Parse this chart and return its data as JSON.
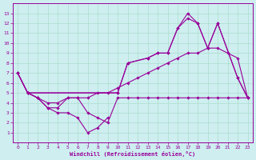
{
  "xlabel": "Windchill (Refroidissement éolien,°C)",
  "xlim": [
    -0.5,
    23.5
  ],
  "ylim": [
    0,
    14
  ],
  "xticks": [
    0,
    1,
    2,
    3,
    4,
    5,
    6,
    7,
    8,
    9,
    10,
    11,
    12,
    13,
    14,
    15,
    16,
    17,
    18,
    19,
    20,
    21,
    22,
    23
  ],
  "yticks": [
    1,
    2,
    3,
    4,
    5,
    6,
    7,
    8,
    9,
    10,
    11,
    12,
    13
  ],
  "bg_color": "#ceeef0",
  "line_color": "#990099",
  "grid_color": "#aaddcc",
  "lines": [
    {
      "x": [
        0,
        1,
        10,
        11,
        13,
        14,
        15,
        16,
        17,
        18,
        19,
        20,
        22,
        23
      ],
      "y": [
        7,
        5,
        5,
        8,
        8.5,
        9,
        9,
        11.5,
        13,
        12,
        9.5,
        12,
        6.5,
        4.5
      ]
    },
    {
      "x": [
        0,
        1,
        10,
        11,
        13,
        14,
        15,
        16,
        17,
        18,
        19,
        20,
        22,
        23
      ],
      "y": [
        7,
        5,
        5,
        8,
        8.5,
        9,
        9,
        11.5,
        12.5,
        12,
        9.5,
        12,
        6.5,
        4.5
      ]
    },
    {
      "x": [
        0,
        1,
        2,
        3,
        4,
        5,
        6,
        7,
        8,
        9,
        10,
        11,
        12,
        13,
        14,
        15,
        16,
        17,
        18,
        19,
        20,
        21,
        22,
        23
      ],
      "y": [
        7,
        5,
        4.5,
        4,
        4,
        4.5,
        4.5,
        4.5,
        5,
        5,
        5.5,
        6,
        6.5,
        7,
        7.5,
        8,
        8.5,
        9,
        9,
        9.5,
        9.5,
        9,
        8.5,
        4.5
      ]
    },
    {
      "x": [
        0,
        1,
        2,
        3,
        4,
        5,
        6,
        7,
        8,
        9,
        10,
        11,
        12,
        13,
        14,
        15,
        16,
        17,
        18,
        19,
        20,
        21,
        22,
        23
      ],
      "y": [
        7,
        5,
        4.5,
        3.5,
        3.5,
        4.5,
        4.5,
        3,
        2.5,
        2,
        4.5,
        4.5,
        4.5,
        4.5,
        4.5,
        4.5,
        4.5,
        4.5,
        4.5,
        4.5,
        4.5,
        4.5,
        4.5,
        4.5
      ]
    },
    {
      "x": [
        1,
        2,
        3,
        4,
        5,
        6,
        7,
        8,
        9
      ],
      "y": [
        5,
        4.5,
        3.5,
        3,
        3,
        2.5,
        1,
        1.5,
        2.5
      ]
    }
  ]
}
